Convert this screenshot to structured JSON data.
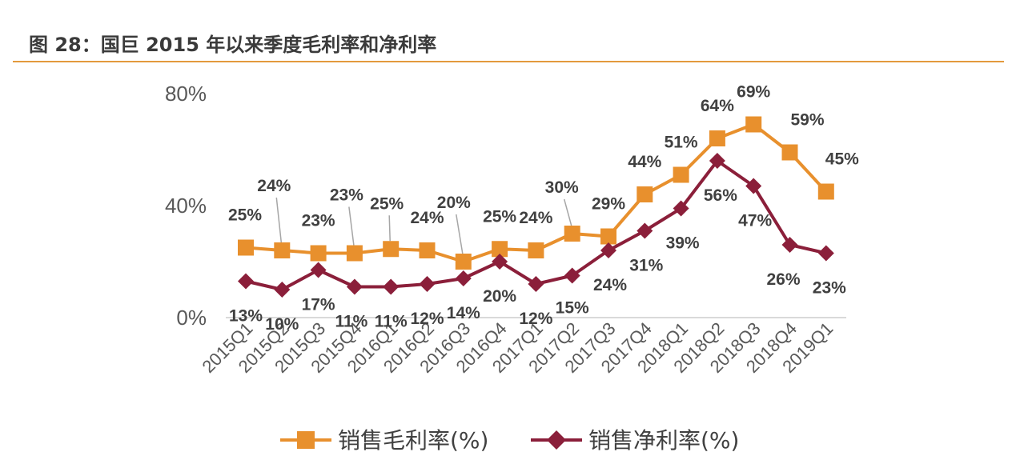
{
  "figure": {
    "title": "图 28：国巨 2015 年以来季度毛利率和净利率"
  },
  "colors": {
    "gross": "#e8902d",
    "net": "#8b1f3a",
    "axis": "#d9d9d9",
    "leader": "#a6a6a6",
    "rule": "#e39a3d"
  },
  "chart_data": {
    "type": "line",
    "title": "",
    "xlabel": "",
    "ylabel": "",
    "ylim": [
      0,
      80
    ],
    "yticks": [
      0,
      40,
      80
    ],
    "ytick_labels": [
      "0%",
      "40%",
      "80%"
    ],
    "grid": false,
    "legend_position": "bottom",
    "categories": [
      "2015Q1",
      "2015Q2",
      "2015Q3",
      "2015Q4",
      "2016Q1",
      "2016Q2",
      "2016Q3",
      "2016Q4",
      "2017Q1",
      "2017Q2",
      "2017Q3",
      "2017Q4",
      "2018Q1",
      "2018Q2",
      "2018Q3",
      "2018Q4",
      "2019Q1"
    ],
    "series": [
      {
        "name": "销售毛利率(%)",
        "values": [
          25,
          24,
          23,
          23,
          24.5,
          24,
          20,
          24.5,
          24,
          30,
          29,
          44,
          51,
          64,
          69,
          59,
          45
        ],
        "data_labels": [
          "25%",
          "24%",
          "23%",
          "23%",
          "25%",
          "24%",
          "20%",
          "25%",
          "24%",
          "30%",
          "29%",
          "44%",
          "51%",
          "64%",
          "69%",
          "59%",
          "45%"
        ],
        "marker": "square"
      },
      {
        "name": "销售净利率(%)",
        "values": [
          13,
          10,
          17,
          11,
          11,
          12,
          14,
          20,
          12,
          15,
          24,
          31,
          39,
          56,
          47,
          26,
          23
        ],
        "data_labels": [
          "13%",
          "10%",
          "17%",
          "11%",
          "11%",
          "12%",
          "14%",
          "20%",
          "12%",
          "15%",
          "24%",
          "31%",
          "39%",
          "56%",
          "47%",
          "26%",
          "23%"
        ],
        "marker": "diamond"
      }
    ]
  }
}
